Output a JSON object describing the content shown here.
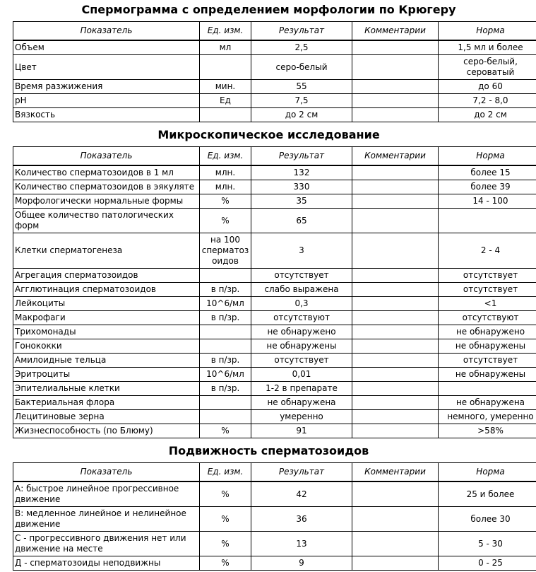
{
  "page": {
    "background": "#ffffff",
    "text_color": "#000000",
    "border_color": "#000000"
  },
  "columns": [
    {
      "key": "indicator",
      "label": "Показатель"
    },
    {
      "key": "unit",
      "label": "Ед. изм."
    },
    {
      "key": "result",
      "label": "Результат"
    },
    {
      "key": "comment",
      "label": "Комментарии"
    },
    {
      "key": "norm",
      "label": "Норма"
    }
  ],
  "sections": [
    {
      "id": "spermogram-kruger",
      "title": "Спермограмма с определением морфологии по Крюгеру",
      "rows": [
        {
          "indicator": "Объем",
          "unit": "мл",
          "result": "2,5",
          "comment": "",
          "norm": "1,5 мл и более"
        },
        {
          "indicator": "Цвет",
          "unit": "",
          "result": "серо-белый",
          "comment": "",
          "norm": "серо-белый,\nсероватый"
        },
        {
          "indicator": "Время разжижения",
          "unit": "мин.",
          "result": "55",
          "comment": "",
          "norm": "до 60"
        },
        {
          "indicator": "pH",
          "unit": "Ед",
          "result": "7,5",
          "comment": "",
          "norm": "7,2 - 8,0"
        },
        {
          "indicator": "Вязкость",
          "unit": "",
          "result": "до 2 см",
          "comment": "",
          "norm": "до 2 см"
        }
      ]
    },
    {
      "id": "microscopy",
      "title": "Микроскопическое исследование",
      "rows": [
        {
          "indicator": "Количество сперматозоидов в 1 мл",
          "unit": "млн.",
          "result": "132",
          "comment": "",
          "norm": "более 15"
        },
        {
          "indicator": "Количество сперматозоидов в эякуляте",
          "unit": "млн.",
          "result": "330",
          "comment": "",
          "norm": "более 39"
        },
        {
          "indicator": "Морфологически нормальные формы",
          "unit": "%",
          "result": "35",
          "comment": "",
          "norm": "14 - 100"
        },
        {
          "indicator": "Общее количество патологических форм",
          "unit": "%",
          "result": "65",
          "comment": "",
          "norm": ""
        },
        {
          "indicator": "Клетки сперматогенеза",
          "unit": "на 100 сперматозоидов",
          "result": "3",
          "comment": "",
          "norm": "2 - 4"
        },
        {
          "indicator": "Агрегация сперматозоидов",
          "unit": "",
          "result": "отсутствует",
          "comment": "",
          "norm": "отсутствует"
        },
        {
          "indicator": "Агглютинация сперматозоидов",
          "unit": "в п/зр.",
          "result": "слабо выражена",
          "comment": "",
          "norm": "отсутствует"
        },
        {
          "indicator": "Лейкоциты",
          "unit": "10^6/мл",
          "result": "0,3",
          "comment": "",
          "norm": "<1"
        },
        {
          "indicator": "Макрофаги",
          "unit": "в п/зр.",
          "result": "отсутствуют",
          "comment": "",
          "norm": "отсутствуют"
        },
        {
          "indicator": "Трихомонады",
          "unit": "",
          "result": "не обнаружено",
          "comment": "",
          "norm": "не обнаружено"
        },
        {
          "indicator": "Гонококки",
          "unit": "",
          "result": "не обнаружены",
          "comment": "",
          "norm": "не обнаружены"
        },
        {
          "indicator": "Амилоидные тельца",
          "unit": "в п/зр.",
          "result": "отсутствует",
          "comment": "",
          "norm": "отсутствует"
        },
        {
          "indicator": "Эритроциты",
          "unit": "10^6/мл",
          "result": "0,01",
          "comment": "",
          "norm": "не обнаружены"
        },
        {
          "indicator": "Эпителиальные клетки",
          "unit": "в п/зр.",
          "result": "1-2 в препарате",
          "comment": "",
          "norm": ""
        },
        {
          "indicator": "Бактериальная флора",
          "unit": "",
          "result": "не обнаружена",
          "comment": "",
          "norm": "не обнаружена"
        },
        {
          "indicator": "Лецитиновые зерна",
          "unit": "",
          "result": "умеренно",
          "comment": "",
          "norm": "немного, умеренно"
        },
        {
          "indicator": "Жизнеспособность (по Блюму)",
          "unit": "%",
          "result": "91",
          "comment": "",
          "norm": ">58%"
        }
      ]
    },
    {
      "id": "motility",
      "title": "Подвижность сперматозоидов",
      "rows": [
        {
          "indicator": "А: быстрое линейное прогрессивное движение",
          "unit": "%",
          "result": "42",
          "comment": "",
          "norm": "25 и более"
        },
        {
          "indicator": "В: медленное линейное и нелинейное движение",
          "unit": "%",
          "result": "36",
          "comment": "",
          "norm": "более 30"
        },
        {
          "indicator": "С - прогрессивного движения нет или движение на месте",
          "unit": "%",
          "result": "13",
          "comment": "",
          "norm": "5 - 30"
        },
        {
          "indicator": "Д - сперматозоиды неподвижны",
          "unit": "%",
          "result": "9",
          "comment": "",
          "norm": "0 - 25"
        }
      ]
    }
  ]
}
